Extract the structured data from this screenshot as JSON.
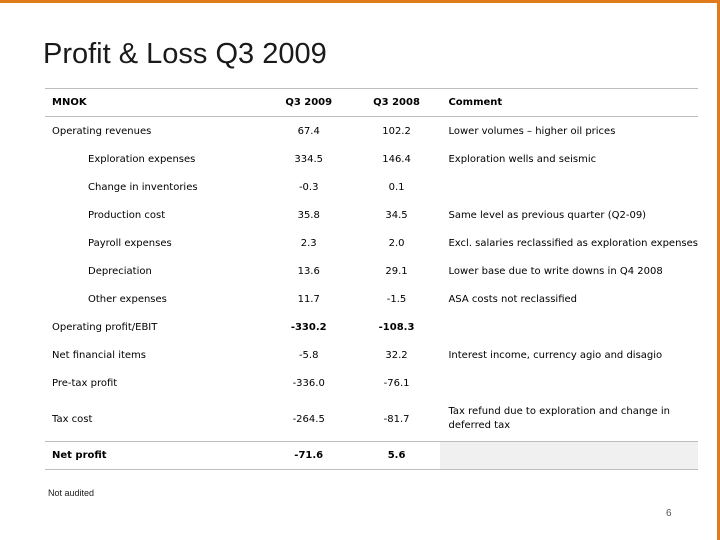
{
  "slide": {
    "title": "Profit & Loss Q3 2009",
    "footnote": "Not audited",
    "page_number": "6",
    "accent_color": "#e07b1a"
  },
  "table": {
    "headers": [
      "MNOK",
      "Q3 2009",
      "Q3 2008",
      "Comment"
    ],
    "rows": [
      {
        "label": "Operating revenues",
        "q3_2009": "67.4",
        "q3_2008": "102.2",
        "comment": "Lower volumes – higher oil prices"
      },
      {
        "label": "Exploration expenses",
        "q3_2009": "334.5",
        "q3_2008": "146.4",
        "comment": "Exploration wells and seismic"
      },
      {
        "label": "Change in inventories",
        "q3_2009": "-0.3",
        "q3_2008": "0.1",
        "comment": ""
      },
      {
        "label": "Production cost",
        "q3_2009": "35.8",
        "q3_2008": "34.5",
        "comment": "Same level as previous quarter (Q2-09)"
      },
      {
        "label": "Payroll expenses",
        "q3_2009": "2.3",
        "q3_2008": "2.0",
        "comment": "Excl. salaries reclassified as exploration expenses"
      },
      {
        "label": "Depreciation",
        "q3_2009": "13.6",
        "q3_2008": "29.1",
        "comment": "Lower base due to write downs in Q4 2008"
      },
      {
        "label": "Other expenses",
        "q3_2009": "11.7",
        "q3_2008": "-1.5",
        "comment": "ASA costs not reclassified"
      },
      {
        "label": "Operating profit/EBIT",
        "q3_2009": "-330.2",
        "q3_2008": "-108.3",
        "comment": ""
      },
      {
        "label": "Net financial items",
        "q3_2009": "-5.8",
        "q3_2008": "32.2",
        "comment": "Interest income, currency agio and disagio"
      },
      {
        "label": "Pre-tax profit",
        "q3_2009": "-336.0",
        "q3_2008": "-76.1",
        "comment": ""
      },
      {
        "label": "Tax cost",
        "q3_2009": "-264.5",
        "q3_2008": "-81.7",
        "comment": "Tax refund due to exploration and change in deferred tax"
      },
      {
        "label": "Net profit",
        "q3_2009": "-71.6",
        "q3_2008": "5.6",
        "comment": ""
      }
    ]
  }
}
